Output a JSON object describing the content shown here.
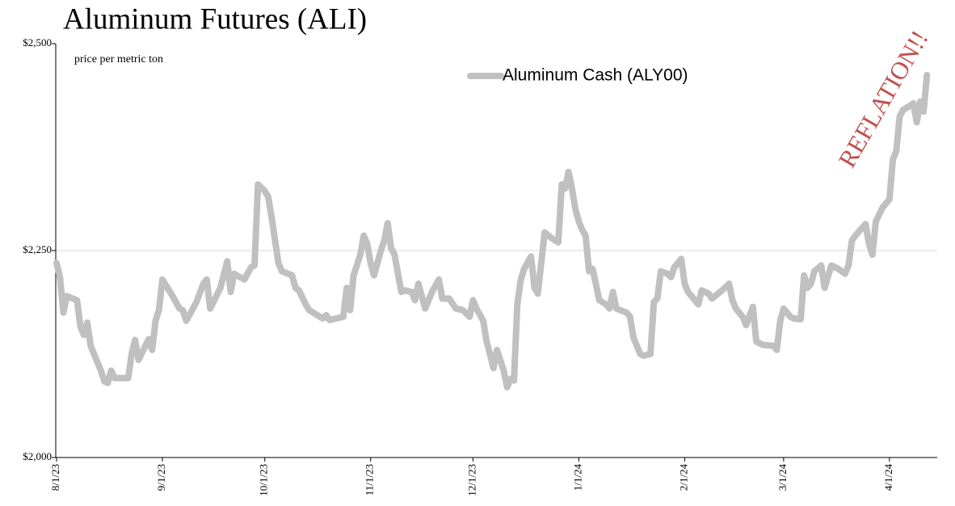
{
  "chart_data": {
    "type": "line",
    "title": "Aluminum Futures (ALI)",
    "y_label": "price per metric ton",
    "annotation": "REFLATION!!",
    "annotation_color": "#c0504d",
    "grid": true,
    "legend_position": "top-center",
    "ylim": [
      2000,
      2500
    ],
    "yticks": [
      {
        "value": 2000,
        "label": "$2,000"
      },
      {
        "value": 2250,
        "label": "$2,250"
      },
      {
        "value": 2500,
        "label": "$2,500"
      }
    ],
    "xlim": [
      "8/1/23",
      "4/15/24"
    ],
    "xticks": [
      "8/1/23",
      "9/1/23",
      "10/1/23",
      "11/1/23",
      "12/1/23",
      "1/1/24",
      "2/1/24",
      "3/1/24",
      "4/1/24"
    ],
    "x": [
      "8/1/23",
      "8/2/23",
      "8/3/23",
      "8/4/23",
      "8/7/23",
      "8/8/23",
      "8/9/23",
      "8/10/23",
      "8/11/23",
      "8/14/23",
      "8/15/23",
      "8/16/23",
      "8/17/23",
      "8/18/23",
      "8/22/23",
      "8/23/23",
      "8/24/23",
      "8/25/23",
      "8/28/23",
      "8/29/23",
      "8/30/23",
      "8/31/23",
      "9/1/23",
      "9/4/23",
      "9/6/23",
      "9/7/23",
      "9/8/23",
      "9/11/23",
      "9/13/23",
      "9/14/23",
      "9/15/23",
      "9/18/23",
      "9/20/23",
      "9/21/23",
      "9/22/23",
      "9/25/23",
      "9/27/23",
      "9/28/23",
      "9/29/23",
      "10/1/23",
      "10/2/23",
      "10/3/23",
      "10/5/23",
      "10/6/23",
      "10/9/23",
      "10/10/23",
      "10/11/23",
      "10/13/23",
      "10/14/23",
      "10/18/23",
      "10/19/23",
      "10/20/23",
      "10/24/23",
      "10/25/23",
      "10/26/23",
      "10/27/23",
      "10/29/23",
      "10/30/23",
      "10/31/23",
      "11/1/23",
      "11/2/23",
      "11/4/23",
      "11/5/23",
      "11/6/23",
      "11/7/23",
      "11/8/23",
      "11/10/23",
      "11/11/23",
      "11/13/23",
      "11/14/23",
      "11/15/23",
      "11/17/23",
      "11/19/23",
      "11/21/23",
      "11/22/23",
      "11/24/23",
      "11/26/23",
      "11/28/23",
      "11/30/23",
      "12/1/23",
      "12/2/23",
      "12/4/23",
      "12/5/23",
      "12/7/23",
      "12/8/23",
      "12/10/23",
      "12/11/23",
      "12/12/23",
      "12/13/23",
      "12/14/23",
      "12/15/23",
      "12/16/23",
      "12/18/23",
      "12/19/23",
      "12/20/23",
      "12/22/23",
      "12/24/23",
      "12/26/23",
      "12/27/23",
      "12/28/23",
      "12/29/23",
      "12/30/23",
      "12/31/23",
      "1/1/24",
      "1/2/24",
      "1/3/24",
      "1/4/24",
      "1/5/24",
      "1/6/24",
      "1/7/24",
      "1/9/24",
      "1/10/24",
      "1/11/24",
      "1/12/24",
      "1/15/24",
      "1/16/24",
      "1/17/24",
      "1/19/24",
      "1/20/24",
      "1/22/24",
      "1/23/24",
      "1/24/24",
      "1/25/24",
      "1/27/24",
      "1/28/24",
      "1/29/24",
      "1/31/24",
      "2/1/24",
      "2/2/24",
      "2/3/24",
      "2/5/24",
      "2/6/24",
      "2/8/24",
      "2/9/24",
      "2/12/24",
      "2/14/24",
      "2/15/24",
      "2/16/24",
      "2/18/24",
      "2/19/24",
      "2/21/24",
      "2/22/24",
      "2/24/24",
      "2/27/24",
      "2/28/24",
      "2/29/24",
      "3/1/24",
      "3/2/24",
      "3/3/24",
      "3/4/24",
      "3/6/24",
      "3/7/24",
      "3/8/24",
      "3/9/24",
      "3/10/24",
      "3/12/24",
      "3/13/24",
      "3/15/24",
      "3/16/24",
      "3/17/24",
      "3/19/24",
      "3/20/24",
      "3/21/24",
      "3/22/24",
      "3/25/24",
      "3/26/24",
      "3/27/24",
      "3/28/24",
      "3/30/24",
      "4/1/24",
      "4/2/24",
      "4/3/24",
      "4/4/24",
      "4/5/24",
      "4/7/24",
      "4/8/24",
      "4/9/24",
      "4/10/24",
      "4/11/24",
      "4/12/24"
    ],
    "series": [
      {
        "name": "Aluminum Cash (ALY00)",
        "color": "#c0c0c0",
        "values": [
          2235,
          2218,
          2175,
          2195,
          2190,
          2158,
          2148,
          2163,
          2135,
          2105,
          2092,
          2090,
          2105,
          2096,
          2096,
          2125,
          2142,
          2118,
          2143,
          2130,
          2165,
          2178,
          2215,
          2195,
          2180,
          2178,
          2165,
          2188,
          2210,
          2215,
          2180,
          2205,
          2237,
          2200,
          2222,
          2215,
          2230,
          2232,
          2330,
          2322,
          2315,
          2290,
          2235,
          2225,
          2220,
          2205,
          2202,
          2185,
          2178,
          2168,
          2172,
          2166,
          2170,
          2205,
          2178,
          2220,
          2245,
          2268,
          2258,
          2235,
          2220,
          2250,
          2262,
          2283,
          2253,
          2245,
          2200,
          2202,
          2200,
          2190,
          2210,
          2180,
          2200,
          2215,
          2192,
          2192,
          2180,
          2178,
          2170,
          2190,
          2180,
          2165,
          2140,
          2108,
          2130,
          2105,
          2085,
          2095,
          2093,
          2185,
          2215,
          2228,
          2243,
          2205,
          2198,
          2272,
          2265,
          2260,
          2330,
          2325,
          2345,
          2325,
          2300,
          2285,
          2275,
          2268,
          2225,
          2228,
          2210,
          2190,
          2185,
          2180,
          2200,
          2180,
          2175,
          2170,
          2145,
          2125,
          2123,
          2125,
          2188,
          2192,
          2225,
          2222,
          2218,
          2230,
          2240,
          2210,
          2200,
          2195,
          2185,
          2202,
          2198,
          2192,
          2202,
          2210,
          2190,
          2180,
          2170,
          2160,
          2182,
          2140,
          2136,
          2135,
          2130,
          2165,
          2180,
          2175,
          2170,
          2168,
          2167,
          2220,
          2205,
          2210,
          2225,
          2232,
          2205,
          2232,
          2230,
          2228,
          2222,
          2232,
          2262,
          2268,
          2282,
          2258,
          2245,
          2285,
          2302,
          2312,
          2360,
          2370,
          2412,
          2420,
          2425,
          2428,
          2405,
          2430,
          2418,
          2462
        ]
      }
    ]
  }
}
